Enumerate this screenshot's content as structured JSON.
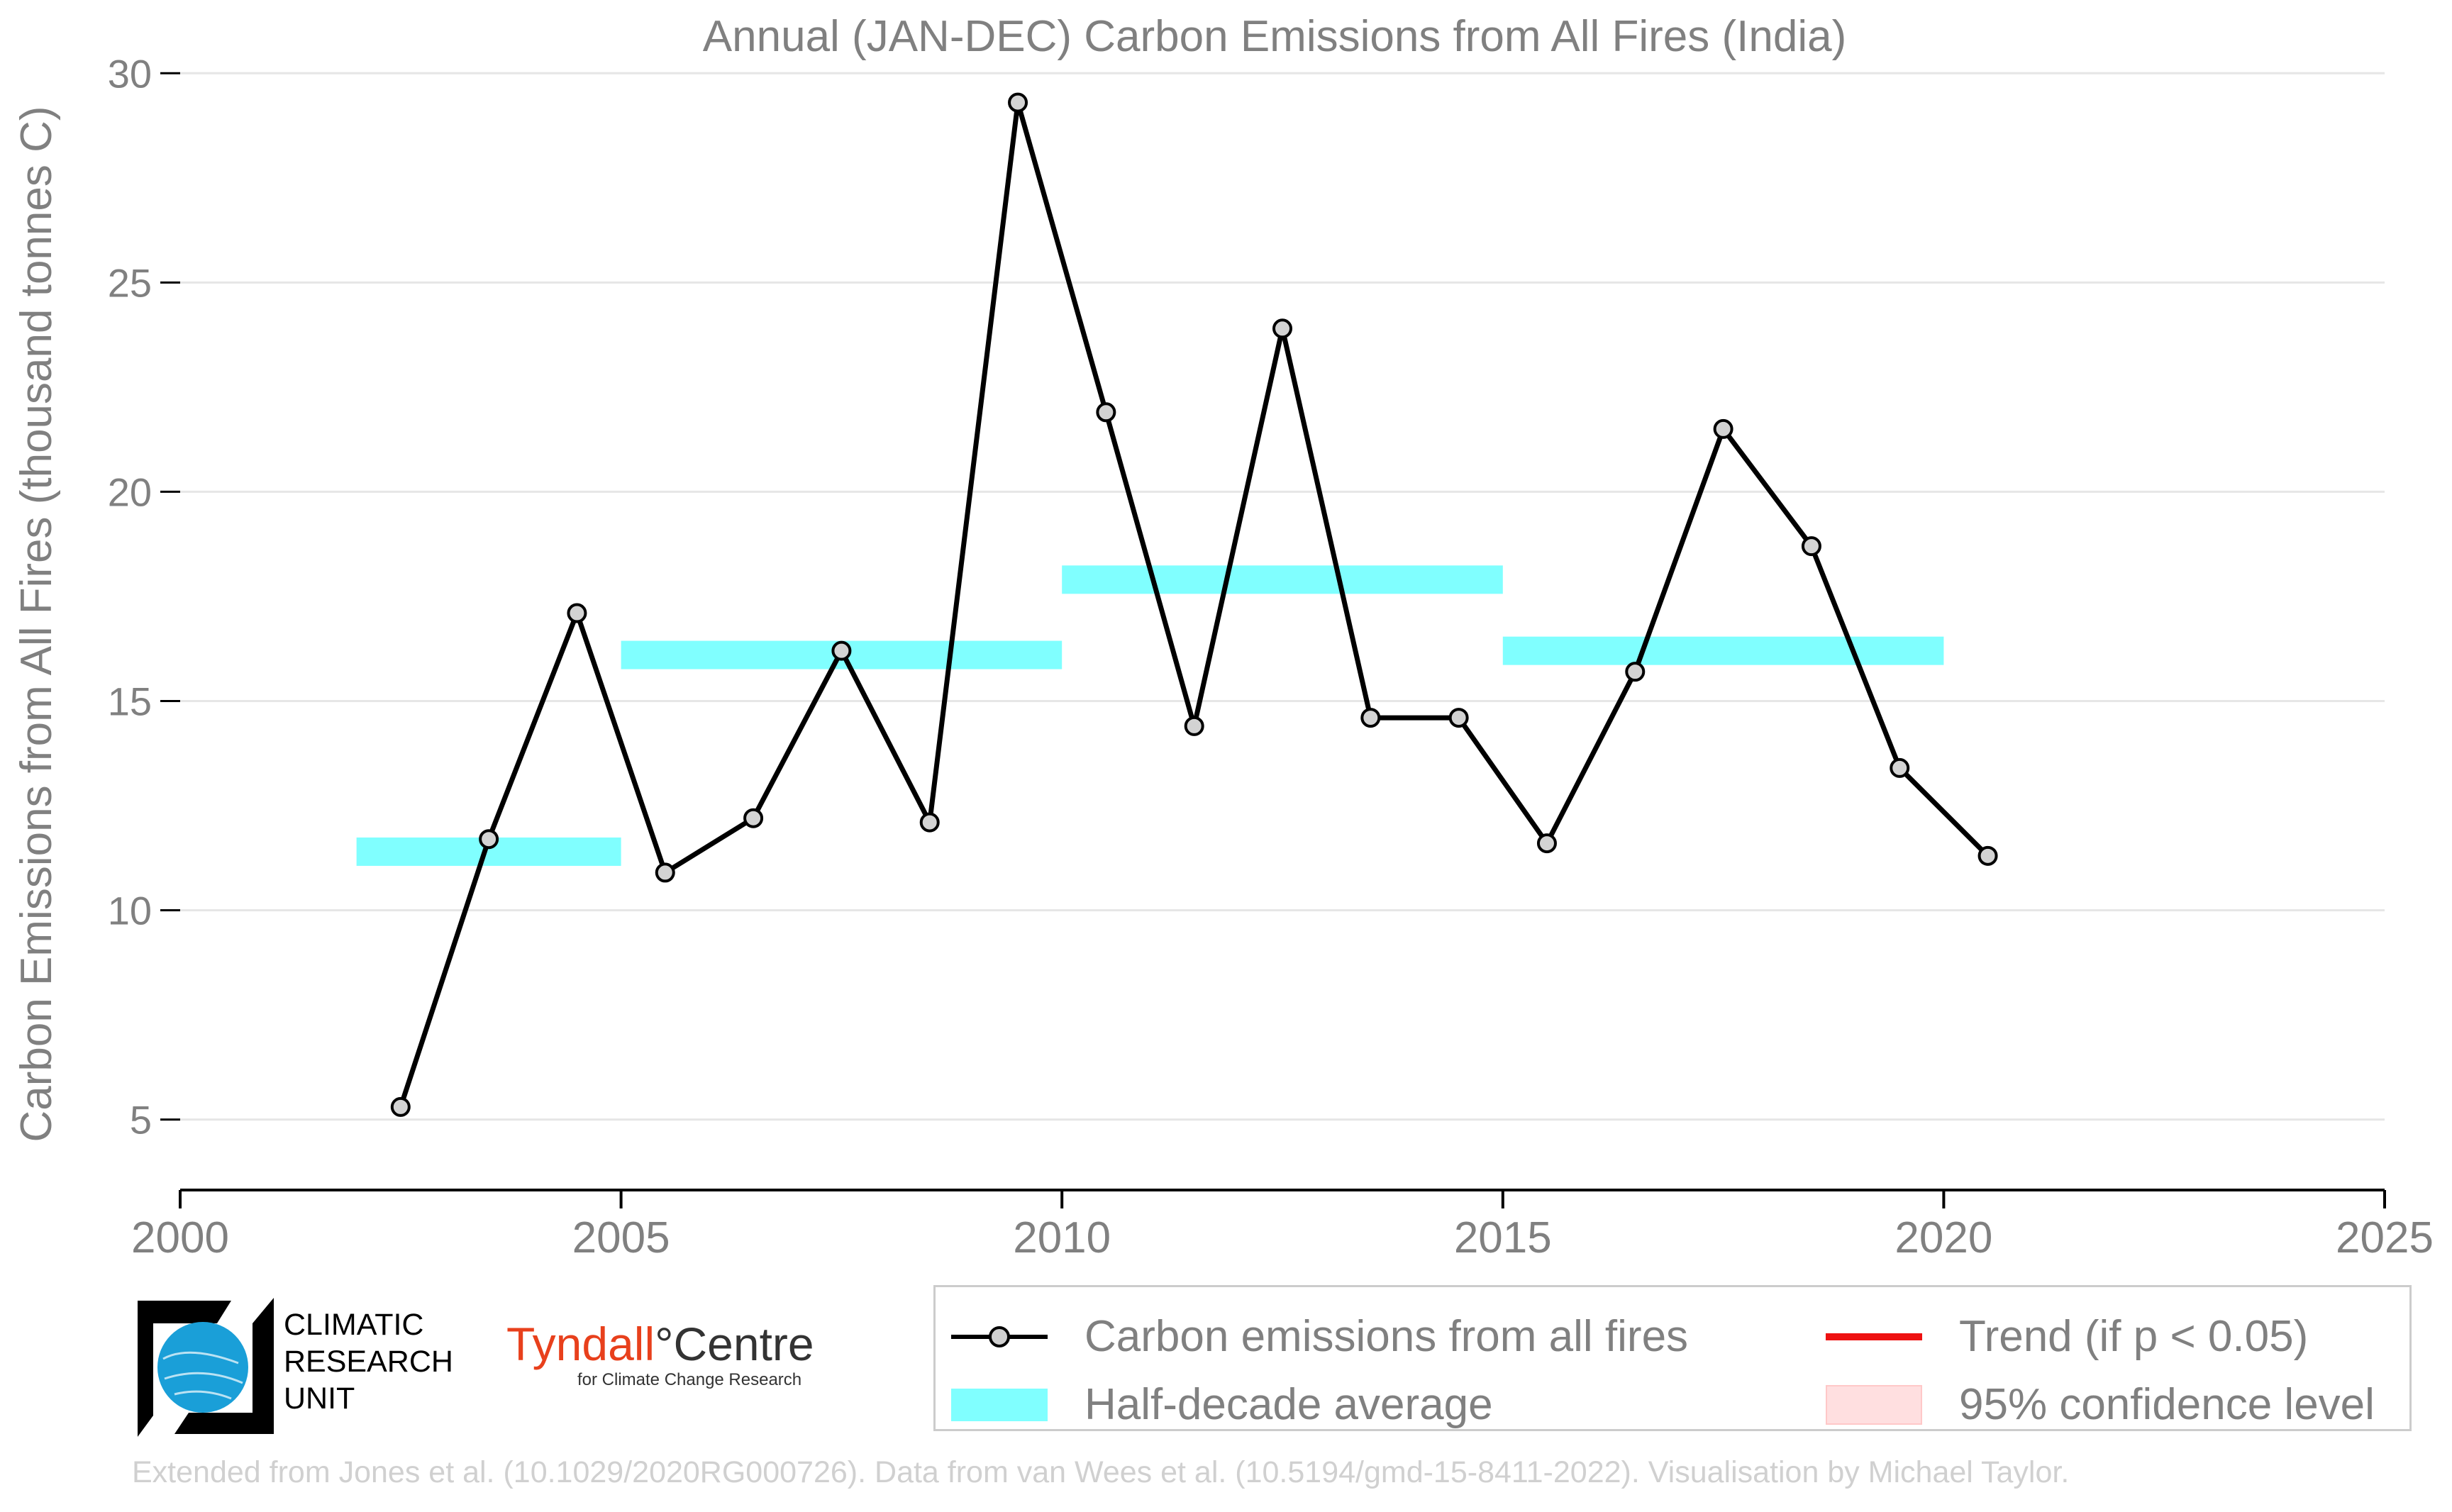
{
  "chart_data": {
    "type": "line",
    "title": "Annual (JAN-DEC) Carbon Emissions from All Fires (India)",
    "ylabel": "Carbon Emissions from All Fires (thousand tonnes C)",
    "xlabel": "",
    "xlim": [
      2000,
      2025
    ],
    "ylim": [
      3.4,
      30.7
    ],
    "x_ticks": [
      2000,
      2005,
      2010,
      2015,
      2020,
      2025
    ],
    "y_ticks": [
      5,
      10,
      15,
      20,
      25,
      30
    ],
    "grid": "horizontal",
    "series": [
      {
        "name": "Carbon emissions from all fires",
        "color": "#000000",
        "x": [
          2002.5,
          2003.5,
          2004.5,
          2005.5,
          2006.5,
          2007.5,
          2008.5,
          2009.5,
          2010.5,
          2011.5,
          2012.5,
          2013.5,
          2014.5,
          2015.5,
          2016.5,
          2017.5,
          2018.5,
          2019.5,
          2020.5
        ],
        "values": [
          5.3,
          11.7,
          17.1,
          10.9,
          12.2,
          16.2,
          12.1,
          29.3,
          21.9,
          14.4,
          23.9,
          14.6,
          14.6,
          11.6,
          15.7,
          21.5,
          18.7,
          13.4,
          11.3
        ]
      }
    ],
    "half_decade_average": {
      "name": "Half-decade average",
      "color": "#80ffff",
      "segments": [
        {
          "x0": 2002,
          "x1": 2005,
          "value": 11.4
        },
        {
          "x0": 2005,
          "x1": 2010,
          "value": 16.1
        },
        {
          "x0": 2010,
          "x1": 2015,
          "value": 17.9
        },
        {
          "x0": 2015,
          "x1": 2020,
          "value": 16.2
        }
      ]
    },
    "legend": {
      "placement": "bottom-right",
      "entries": [
        {
          "key": "series",
          "label": "Carbon emissions from all fires"
        },
        {
          "key": "trend",
          "label": "Trend (if p < 0.05)",
          "color": "#ee1111"
        },
        {
          "key": "avg",
          "label": "Half-decade average",
          "color": "#80ffff"
        },
        {
          "key": "ci",
          "label": "95% confidence level",
          "color": "#ffdfe0"
        }
      ]
    }
  },
  "logos": {
    "cru_lines": [
      "CLIMATIC",
      "RESEARCH",
      "UNIT"
    ],
    "tyndall_part1": "Tyndall",
    "tyndall_part2": "°Centre",
    "tyndall_sub": "for Climate Change Research"
  },
  "credit": "Extended from Jones et al. (10.1029/2020RG000726). Data from van Wees et al. (10.5194/gmd-15-8411-2022). Visualisation by Michael Taylor."
}
